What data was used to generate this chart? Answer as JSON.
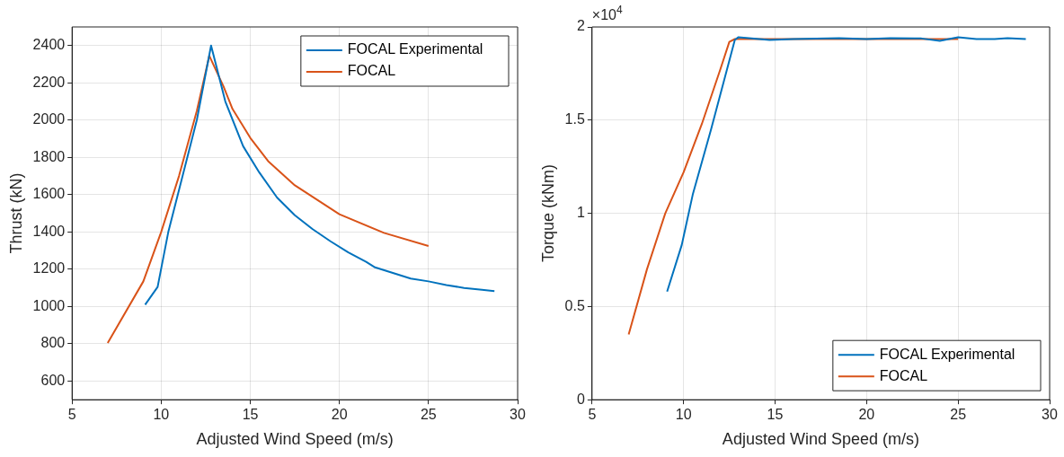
{
  "chart_data": [
    {
      "type": "line",
      "xlabel": "Adjusted Wind Speed (m/s)",
      "ylabel": "Thrust (kN)",
      "xlim": [
        5,
        30
      ],
      "xticks": [
        5,
        10,
        15,
        20,
        25,
        30
      ],
      "ylim": [
        500,
        2500
      ],
      "yticks": [
        600,
        800,
        1000,
        1200,
        1400,
        1600,
        1800,
        2000,
        2200,
        2400
      ],
      "grid": true,
      "legend": "top right",
      "line_style": "solid",
      "marker": "none",
      "series": [
        {
          "name": "FOCAL Experimental",
          "color": "#0072bd",
          "x": [
            9.1,
            9.8,
            10.4,
            12,
            12.8,
            13.6,
            14.6,
            15.5,
            16.5,
            17.5,
            18.5,
            19.5,
            20.5,
            21.5,
            22,
            23,
            24,
            25,
            26,
            27,
            28,
            28.7
          ],
          "values": [
            1010,
            1105,
            1400,
            2000,
            2400,
            2100,
            1860,
            1720,
            1585,
            1490,
            1415,
            1350,
            1290,
            1240,
            1210,
            1180,
            1150,
            1135,
            1115,
            1100,
            1090,
            1083
          ]
        },
        {
          "name": "FOCAL",
          "color": "#d95319",
          "x": [
            7,
            9,
            10,
            11,
            12,
            12.7,
            13.5,
            14,
            15,
            16,
            17.5,
            20,
            22.5,
            25
          ],
          "values": [
            805,
            1135,
            1400,
            1700,
            2050,
            2345,
            2180,
            2060,
            1905,
            1780,
            1650,
            1495,
            1395,
            1325
          ]
        }
      ]
    },
    {
      "type": "line",
      "xlabel": "Adjusted Wind Speed (m/s)",
      "ylabel": "Torque (kNm)",
      "annotations": [
        "×10$^{4}$"
      ],
      "xlim": [
        5,
        30
      ],
      "xticks": [
        5,
        10,
        15,
        20,
        25,
        30
      ],
      "ylim": [
        0,
        2
      ],
      "yticks": [
        0,
        0.5,
        1,
        1.5,
        2
      ],
      "grid": true,
      "legend": "bottom right",
      "line_style": "solid",
      "marker": "none",
      "series": [
        {
          "name": "FOCAL Experimental",
          "color": "#0072bd",
          "x": [
            9.1,
            9.9,
            10.5,
            11.5,
            12.8,
            13,
            14.7,
            16,
            18.5,
            20,
            21.3,
            23,
            24,
            25,
            26,
            27,
            27.7,
            28.7
          ],
          "values": [
            0.58,
            0.83,
            1.1,
            1.45,
            1.93,
            1.945,
            1.93,
            1.935,
            1.94,
            1.935,
            1.94,
            1.938,
            1.925,
            1.945,
            1.935,
            1.935,
            1.94,
            1.935
          ]
        },
        {
          "name": "FOCAL",
          "color": "#d95319",
          "x": [
            7,
            8,
            9,
            10,
            11,
            12,
            12.5,
            12.8,
            15,
            20,
            25
          ],
          "values": [
            0.35,
            0.7,
            1,
            1.22,
            1.48,
            1.77,
            1.92,
            1.935,
            1.935,
            1.935,
            1.935
          ]
        }
      ]
    }
  ]
}
